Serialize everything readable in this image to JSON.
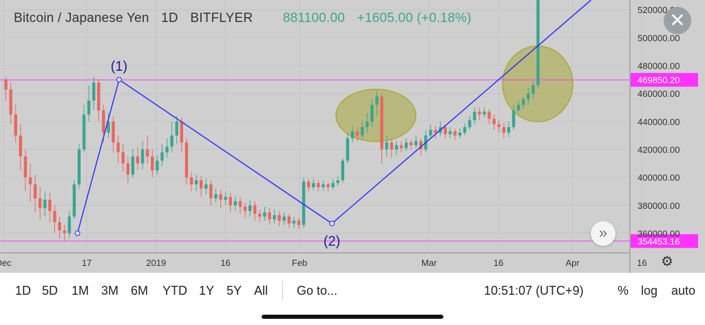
{
  "header": {
    "symbol": "Bitcoin / Japanese Yen",
    "interval": "1D",
    "exchange": "BITFLYER",
    "price": "881100.00",
    "change": "+1605.00 (+0.18%)"
  },
  "close_icon": "close-icon",
  "scroll_icon": "chevron-double-right-icon",
  "settings_icon": "gear-icon",
  "colors": {
    "background": "#cfcfcf",
    "up": "#3aa58f",
    "down": "#e8675d",
    "trend_line": "#2b2bff",
    "horizontal_line": "#ff33ff",
    "highlight": "#a8a83a"
  },
  "chart_data": {
    "type": "candlestick",
    "title": "Bitcoin / Japanese Yen",
    "x_ticks": [
      "Dec",
      "17",
      "2019",
      "16",
      "Feb",
      "Mar",
      "16",
      "Apr",
      "16"
    ],
    "y_ticks": [
      "360000.00",
      "380000.00",
      "400000.00",
      "420000.00",
      "440000.00",
      "460000.00",
      "480000.00",
      "500000.00",
      "520000.00"
    ],
    "ylim": [
      346000,
      527000
    ],
    "horizontal_lines": [
      {
        "value": 469850.2,
        "label": "469850.20"
      },
      {
        "value": 354453.16,
        "label": "354453.16"
      }
    ],
    "annotations": [
      "(1)",
      "(2)"
    ],
    "trend_points": [
      {
        "date": "2018-12-15",
        "value": 360000
      },
      {
        "date": "2018-12-24",
        "value": 470000
      },
      {
        "date": "2019-02-08",
        "value": 367000
      },
      {
        "date": "2019-04-05",
        "value": 527000
      }
    ],
    "candles": [
      [
        470000,
        463000,
        472000,
        455000
      ],
      [
        463000,
        445000,
        468000,
        438000
      ],
      [
        445000,
        430000,
        452000,
        425000
      ],
      [
        430000,
        415000,
        438000,
        405000
      ],
      [
        415000,
        400000,
        420000,
        390000
      ],
      [
        400000,
        395000,
        410000,
        382000
      ],
      [
        395000,
        385000,
        402000,
        375000
      ],
      [
        385000,
        378000,
        393000,
        370000
      ],
      [
        378000,
        384000,
        390000,
        372000
      ],
      [
        384000,
        376000,
        389000,
        368000
      ],
      [
        376000,
        368000,
        380000,
        360000
      ],
      [
        368000,
        362000,
        372000,
        356000
      ],
      [
        362000,
        360000,
        366000,
        354000
      ],
      [
        360000,
        372000,
        376000,
        357000
      ],
      [
        372000,
        395000,
        398000,
        370000
      ],
      [
        395000,
        420000,
        424000,
        392000
      ],
      [
        420000,
        445000,
        452000,
        418000
      ],
      [
        445000,
        455000,
        466000,
        440000
      ],
      [
        455000,
        468000,
        472000,
        448000
      ],
      [
        468000,
        448000,
        470000,
        440000
      ],
      [
        448000,
        432000,
        452000,
        425000
      ],
      [
        432000,
        440000,
        446000,
        428000
      ],
      [
        440000,
        425000,
        444000,
        418000
      ],
      [
        425000,
        418000,
        430000,
        410000
      ],
      [
        418000,
        410000,
        424000,
        404000
      ],
      [
        410000,
        402000,
        415000,
        396000
      ],
      [
        402000,
        415000,
        420000,
        400000
      ],
      [
        415000,
        410000,
        422000,
        405000
      ],
      [
        410000,
        420000,
        426000,
        406000
      ],
      [
        420000,
        415000,
        430000,
        410000
      ],
      [
        415000,
        405000,
        420000,
        400000
      ],
      [
        405000,
        412000,
        416000,
        402000
      ],
      [
        412000,
        418000,
        424000,
        408000
      ],
      [
        418000,
        422000,
        428000,
        414000
      ],
      [
        422000,
        430000,
        440000,
        418000
      ],
      [
        430000,
        440000,
        444000,
        424000
      ],
      [
        440000,
        425000,
        443000,
        418000
      ],
      [
        425000,
        400000,
        428000,
        395000
      ],
      [
        400000,
        395000,
        404000,
        390000
      ],
      [
        395000,
        398000,
        402000,
        390000
      ],
      [
        398000,
        392000,
        401000,
        386000
      ],
      [
        392000,
        395000,
        399000,
        388000
      ],
      [
        395000,
        385000,
        398000,
        380000
      ],
      [
        385000,
        388000,
        392000,
        382000
      ],
      [
        388000,
        384000,
        391000,
        378000
      ],
      [
        384000,
        386000,
        390000,
        380000
      ],
      [
        386000,
        380000,
        389000,
        375000
      ],
      [
        380000,
        383000,
        387000,
        376000
      ],
      [
        383000,
        379000,
        386000,
        374000
      ],
      [
        379000,
        376000,
        382000,
        371000
      ],
      [
        376000,
        380000,
        384000,
        372000
      ],
      [
        380000,
        374000,
        383000,
        369000
      ],
      [
        374000,
        372000,
        377000,
        368000
      ],
      [
        372000,
        375000,
        379000,
        369000
      ],
      [
        375000,
        370000,
        378000,
        366000
      ],
      [
        370000,
        373000,
        377000,
        367000
      ],
      [
        373000,
        369000,
        376000,
        365000
      ],
      [
        369000,
        372000,
        375000,
        366000
      ],
      [
        372000,
        367000,
        374000,
        364000
      ],
      [
        367000,
        369000,
        372000,
        364000
      ],
      [
        369000,
        366000,
        371000,
        363000
      ],
      [
        366000,
        397000,
        400000,
        364000
      ],
      [
        397000,
        393000,
        399000,
        390000
      ],
      [
        393000,
        396000,
        399000,
        391000
      ],
      [
        396000,
        393000,
        398000,
        390000
      ],
      [
        393000,
        395000,
        398000,
        391000
      ],
      [
        395000,
        393000,
        397000,
        390000
      ],
      [
        393000,
        396000,
        399000,
        391000
      ],
      [
        396000,
        398000,
        401000,
        394000
      ],
      [
        398000,
        412000,
        414000,
        396000
      ],
      [
        412000,
        428000,
        432000,
        410000
      ],
      [
        428000,
        433000,
        437000,
        425000
      ],
      [
        433000,
        430000,
        436000,
        426000
      ],
      [
        430000,
        436000,
        440000,
        428000
      ],
      [
        436000,
        440000,
        446000,
        432000
      ],
      [
        440000,
        452000,
        456000,
        436000
      ],
      [
        452000,
        458000,
        462000,
        444000
      ],
      [
        458000,
        420000,
        460000,
        410000
      ],
      [
        420000,
        425000,
        430000,
        415000
      ],
      [
        425000,
        420000,
        428000,
        414000
      ],
      [
        420000,
        423000,
        426000,
        416000
      ],
      [
        423000,
        421000,
        426000,
        418000
      ],
      [
        421000,
        425000,
        428000,
        419000
      ],
      [
        425000,
        423000,
        427000,
        420000
      ],
      [
        423000,
        426000,
        430000,
        421000
      ],
      [
        426000,
        420000,
        428000,
        416000
      ],
      [
        420000,
        430000,
        434000,
        418000
      ],
      [
        430000,
        434000,
        438000,
        428000
      ],
      [
        434000,
        432000,
        437000,
        428000
      ],
      [
        432000,
        436000,
        440000,
        430000
      ],
      [
        436000,
        431000,
        438000,
        428000
      ],
      [
        431000,
        433000,
        436000,
        428000
      ],
      [
        433000,
        430000,
        435000,
        427000
      ],
      [
        430000,
        432000,
        435000,
        428000
      ],
      [
        432000,
        436000,
        439000,
        430000
      ],
      [
        436000,
        441000,
        444000,
        434000
      ],
      [
        441000,
        447000,
        450000,
        438000
      ],
      [
        447000,
        445000,
        450000,
        441000
      ],
      [
        445000,
        447000,
        450000,
        443000
      ],
      [
        447000,
        442000,
        449000,
        438000
      ],
      [
        442000,
        438000,
        445000,
        434000
      ],
      [
        438000,
        436000,
        441000,
        432000
      ],
      [
        436000,
        432000,
        439000,
        428000
      ],
      [
        432000,
        436000,
        440000,
        429000
      ],
      [
        436000,
        448000,
        452000,
        434000
      ],
      [
        448000,
        452000,
        455000,
        446000
      ],
      [
        452000,
        456000,
        458000,
        449000
      ],
      [
        456000,
        460000,
        464000,
        452000
      ],
      [
        460000,
        466000,
        470000,
        456000
      ],
      [
        466000,
        527000,
        530000,
        464000
      ]
    ]
  },
  "toolbar": {
    "ranges": [
      "1D",
      "5D",
      "1M",
      "3M",
      "6M",
      "YTD",
      "1Y",
      "5Y",
      "All"
    ],
    "goto_label": "Go to...",
    "time_label": "10:51:07 (UTC+9)",
    "percent_label": "%",
    "log_label": "log",
    "auto_label": "auto"
  }
}
